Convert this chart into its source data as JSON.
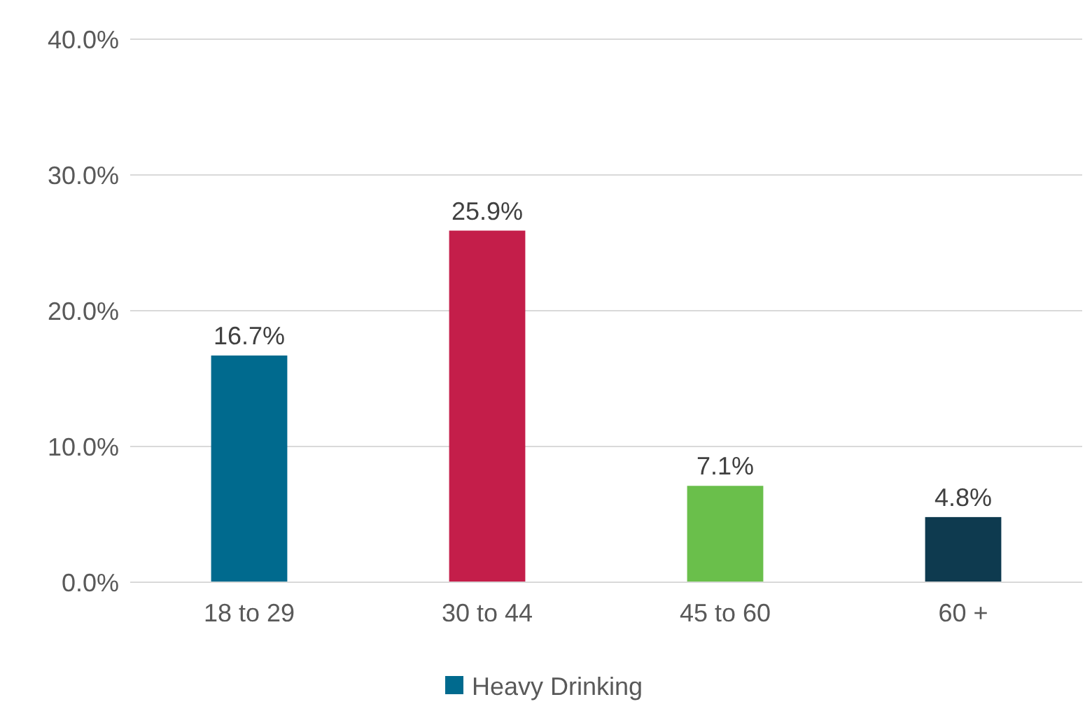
{
  "chart_data": {
    "type": "bar",
    "categories": [
      "18 to 29",
      "30 to 44",
      "45 to 60",
      "60 +"
    ],
    "series": [
      {
        "name": "Heavy Drinking",
        "color": "#006a8e",
        "colors": [
          "#006a8e",
          "#c41e4a",
          "#6abf4b",
          "#0e3a4f"
        ],
        "values": [
          16.7,
          25.9,
          7.1,
          4.8
        ],
        "value_labels": [
          "16.7%",
          "25.9%",
          "7.1%",
          "4.8%"
        ]
      }
    ],
    "ylim": [
      0,
      40
    ],
    "yticks": [
      {
        "value": 0,
        "label": "0.0%"
      },
      {
        "value": 10,
        "label": "10.0%"
      },
      {
        "value": 20,
        "label": "20.0%"
      },
      {
        "value": 30,
        "label": "30.0%"
      },
      {
        "value": 40,
        "label": "40.0%"
      }
    ],
    "grid": "y",
    "legend": "bottom"
  }
}
